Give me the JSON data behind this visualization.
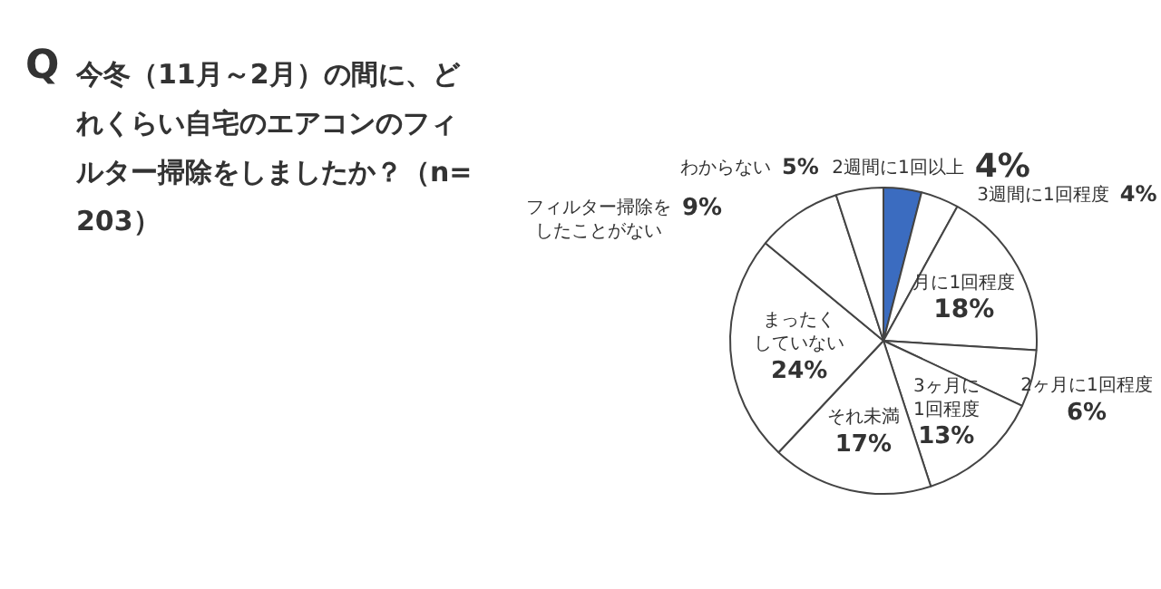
{
  "chart_data": {
    "type": "pie",
    "title": "今冬（11月～2月）の間に、どれくらい自宅のエアコンのフィルター掃除をしましたか？（n=203）",
    "annotations": [
      "Q"
    ],
    "categories": [
      "2週間に1回以上",
      "3週間に1回程度",
      "月に1回程度",
      "2ヶ月に1回程度",
      "3ヶ月に1回程度",
      "それ未満",
      "まったくしていない",
      "フィルター掃除をしたことがない",
      "わからない"
    ],
    "values": [
      4,
      4,
      18,
      6,
      13,
      17,
      24,
      9,
      5
    ],
    "value_labels": [
      "4%",
      "4%",
      "18%",
      "6%",
      "13%",
      "17%",
      "24%",
      "9%",
      "5%"
    ],
    "colors": [
      "#3b6cc0",
      "#ffffff",
      "#ffffff",
      "#ffffff",
      "#ffffff",
      "#ffffff",
      "#ffffff",
      "#ffffff",
      "#ffffff"
    ],
    "legend": false
  }
}
